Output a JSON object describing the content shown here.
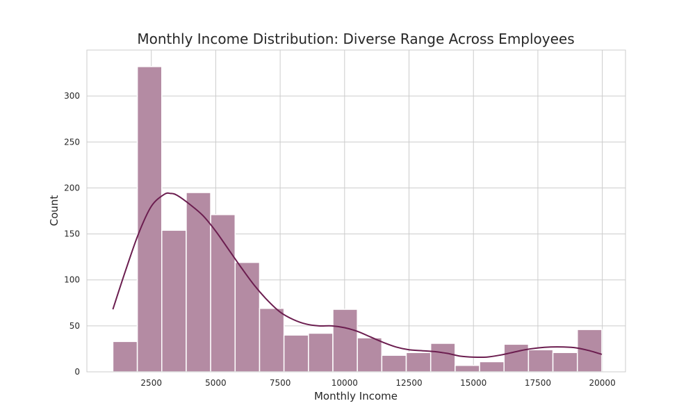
{
  "chart_data": {
    "type": "bar",
    "subtype": "histogram-with-kde",
    "title": "Monthly Income Distribution: Diverse Range Across Employees",
    "xlabel": "Monthly Income",
    "ylabel": "Count",
    "xlim": [
      0,
      20900
    ],
    "ylim": [
      0,
      350
    ],
    "xticks": [
      2500,
      5000,
      7500,
      10000,
      12500,
      15000,
      17500,
      20000
    ],
    "yticks": [
      0,
      50,
      100,
      150,
      200,
      250,
      300
    ],
    "grid": true,
    "bar_color": "#b48ba3",
    "line_color": "#6b1d4f",
    "bins": [
      {
        "x0": 1009,
        "x1": 1958,
        "count": 33
      },
      {
        "x0": 1958,
        "x1": 2906,
        "count": 332
      },
      {
        "x0": 2906,
        "x1": 3855,
        "count": 154
      },
      {
        "x0": 3855,
        "x1": 4803,
        "count": 195
      },
      {
        "x0": 4803,
        "x1": 5752,
        "count": 171
      },
      {
        "x0": 5752,
        "x1": 6701,
        "count": 119
      },
      {
        "x0": 6701,
        "x1": 7649,
        "count": 69
      },
      {
        "x0": 7649,
        "x1": 8598,
        "count": 40
      },
      {
        "x0": 8598,
        "x1": 9546,
        "count": 42
      },
      {
        "x0": 9546,
        "x1": 10495,
        "count": 68
      },
      {
        "x0": 10495,
        "x1": 11444,
        "count": 37
      },
      {
        "x0": 11444,
        "x1": 12392,
        "count": 18
      },
      {
        "x0": 12392,
        "x1": 13341,
        "count": 21
      },
      {
        "x0": 13341,
        "x1": 14289,
        "count": 31
      },
      {
        "x0": 14289,
        "x1": 15238,
        "count": 7
      },
      {
        "x0": 15238,
        "x1": 16187,
        "count": 11
      },
      {
        "x0": 16187,
        "x1": 17135,
        "count": 30
      },
      {
        "x0": 17135,
        "x1": 18084,
        "count": 24
      },
      {
        "x0": 18084,
        "x1": 19032,
        "count": 21
      },
      {
        "x0": 19032,
        "x1": 19981,
        "count": 46
      }
    ],
    "kde": {
      "x": [
        1009,
        1500,
        2000,
        2500,
        3000,
        3250,
        3500,
        4000,
        4500,
        5000,
        5500,
        6000,
        6500,
        7000,
        7500,
        8000,
        8500,
        9000,
        9500,
        10000,
        10500,
        11000,
        11500,
        12000,
        12500,
        13000,
        13500,
        14000,
        14500,
        15000,
        15500,
        16000,
        16500,
        17000,
        17500,
        18000,
        18500,
        19000,
        19500,
        19981
      ],
      "y": [
        68,
        110,
        150,
        180,
        193,
        194,
        192,
        182,
        170,
        153,
        133,
        113,
        94,
        78,
        65,
        57,
        52,
        50,
        50,
        48,
        44,
        38,
        32,
        27,
        24,
        23,
        22,
        20,
        17,
        16,
        16,
        18,
        21,
        24,
        26,
        27,
        27,
        26,
        23,
        19
      ]
    }
  }
}
